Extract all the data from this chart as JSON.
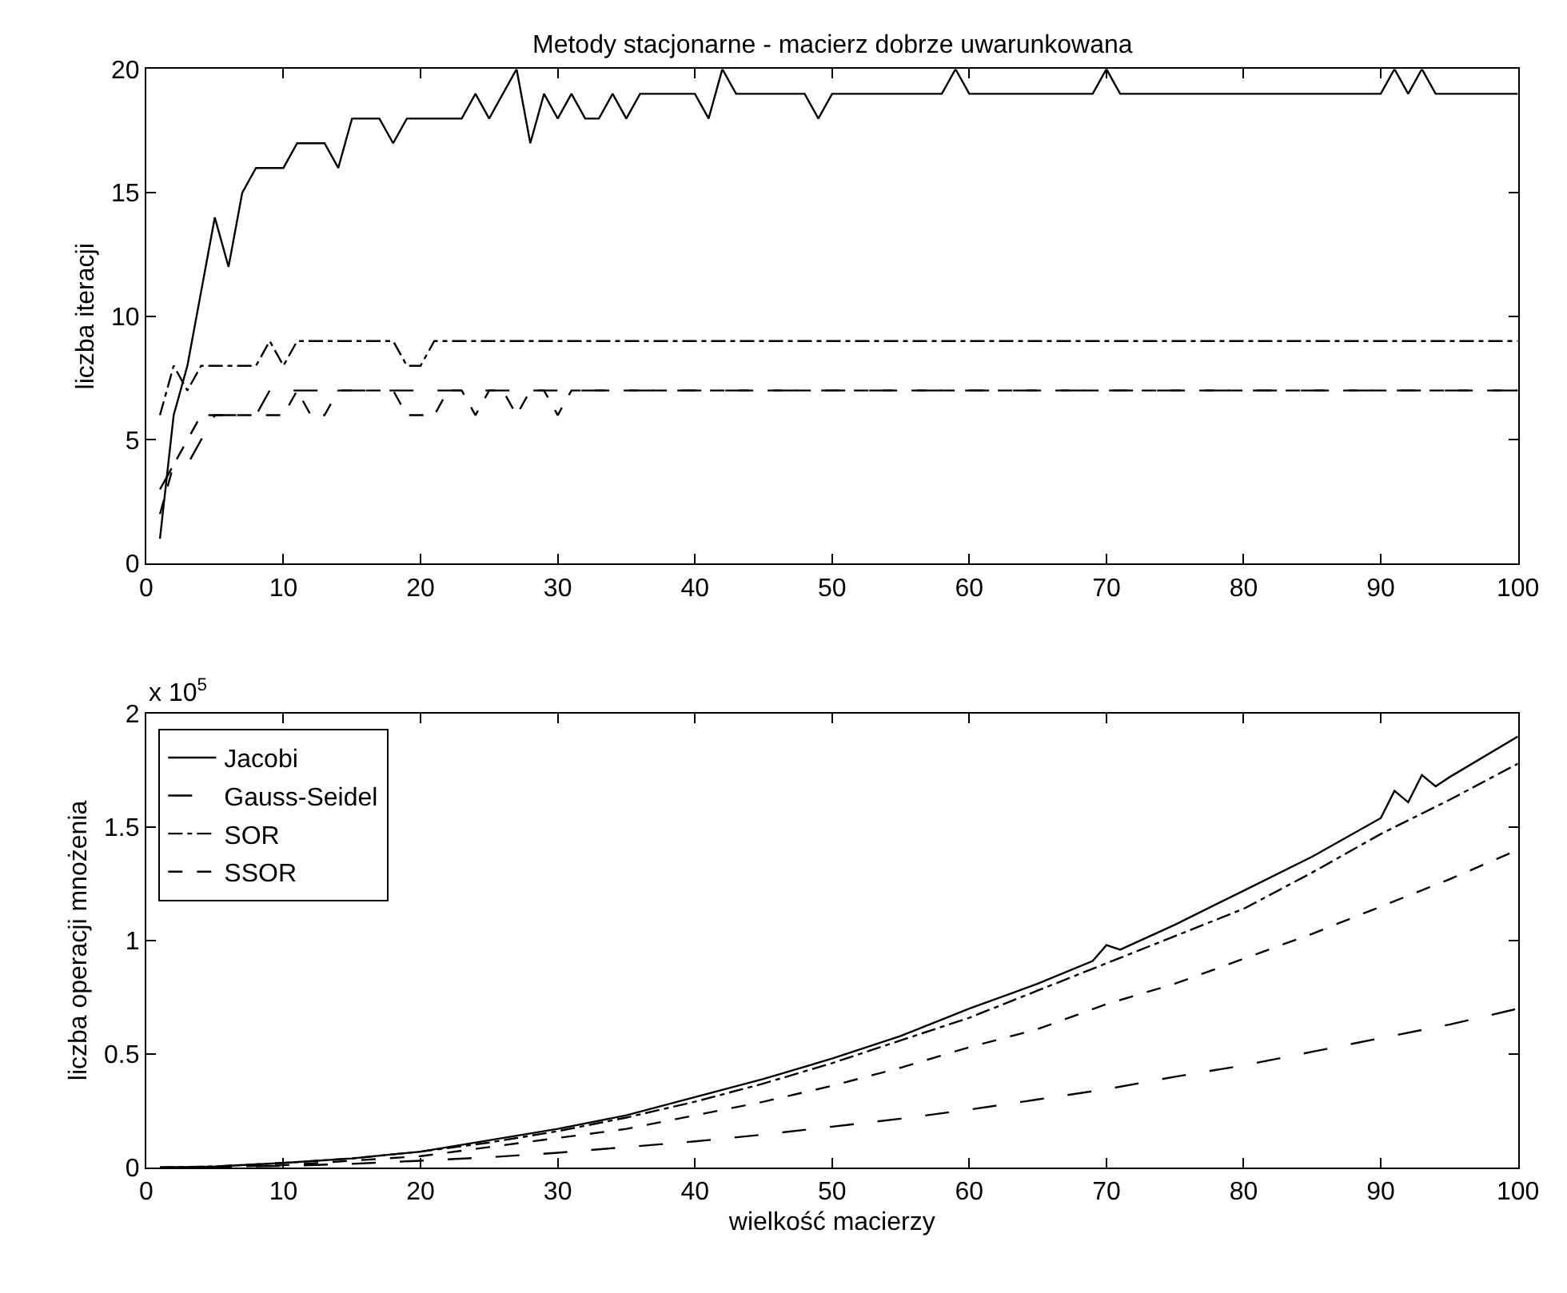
{
  "chart_data": [
    {
      "type": "line",
      "title": "Metody stacjonarne - macierz dobrze uwarunkowana",
      "ylabel": "liczba iteracji",
      "xlim": [
        0,
        100
      ],
      "xticks": [
        0,
        10,
        20,
        30,
        40,
        50,
        60,
        70,
        80,
        90,
        100
      ],
      "ylim": [
        0,
        20
      ],
      "yticks": [
        0,
        5,
        10,
        15,
        20
      ],
      "legend": false,
      "series": [
        {
          "color": "#000000",
          "line_style": "solid",
          "x": [
            1,
            2,
            3,
            5,
            6,
            7,
            8,
            10,
            11,
            13,
            14,
            15,
            17,
            18,
            19,
            23,
            24,
            25,
            27,
            28,
            29,
            30,
            31,
            32,
            33,
            34,
            35,
            36,
            40,
            41,
            42,
            43,
            48,
            49,
            50,
            58,
            59,
            60,
            69,
            70,
            71,
            90,
            91,
            92,
            93,
            94,
            100
          ],
          "values": [
            1,
            6,
            8,
            14,
            12,
            15,
            16,
            16,
            17,
            17,
            16,
            18,
            18,
            17,
            18,
            18,
            19,
            18,
            20,
            17,
            19,
            18,
            19,
            18,
            18,
            19,
            18,
            19,
            19,
            18,
            20,
            19,
            19,
            18,
            19,
            19,
            20,
            19,
            19,
            20,
            19,
            19,
            20,
            19,
            20,
            19,
            19
          ]
        },
        {
          "color": "#000000",
          "line_style": "longdash",
          "x": [
            1,
            2,
            3,
            4,
            5,
            8,
            9,
            100
          ],
          "values": [
            3,
            4,
            4,
            5,
            6,
            6,
            7,
            7
          ]
        },
        {
          "color": "#000000",
          "line_style": "dashdot",
          "x": [
            1,
            2,
            3,
            4,
            8,
            9,
            10,
            11,
            18,
            19,
            20,
            21,
            100
          ],
          "values": [
            6,
            8,
            7,
            8,
            8,
            9,
            8,
            9,
            9,
            8,
            8,
            9,
            9
          ]
        },
        {
          "color": "#000000",
          "line_style": "dashed",
          "x": [
            1,
            2,
            3,
            4,
            10,
            11,
            12,
            13,
            14,
            18,
            19,
            21,
            22,
            23,
            24,
            25,
            26,
            27,
            28,
            29,
            30,
            31,
            100
          ],
          "values": [
            2,
            4,
            5,
            6,
            6,
            7,
            6,
            6,
            7,
            7,
            6,
            6,
            7,
            7,
            6,
            7,
            7,
            6,
            7,
            7,
            6,
            7,
            7
          ]
        }
      ]
    },
    {
      "type": "line",
      "xlabel": "wielkość macierzy",
      "ylabel": "liczba operacji mnożenia",
      "annotations": [
        "x 10$^{5}$"
      ],
      "xlim": [
        0,
        100
      ],
      "xticks": [
        0,
        10,
        20,
        30,
        40,
        50,
        60,
        70,
        80,
        90,
        100
      ],
      "ylim": [
        0,
        2
      ],
      "yticks": [
        0,
        0.5,
        1,
        1.5,
        2
      ],
      "legend": "top left",
      "series": [
        {
          "name": "Jacobi",
          "color": "#000000",
          "line_style": "solid",
          "x": [
            1,
            5,
            10,
            15,
            20,
            25,
            30,
            35,
            40,
            45,
            50,
            55,
            60,
            65,
            69,
            70,
            71,
            75,
            80,
            85,
            90,
            91,
            92,
            93,
            94,
            95,
            100
          ],
          "values": [
            0,
            0.004,
            0.02,
            0.04,
            0.07,
            0.12,
            0.17,
            0.23,
            0.31,
            0.39,
            0.48,
            0.58,
            0.7,
            0.81,
            0.91,
            0.98,
            0.96,
            1.07,
            1.22,
            1.37,
            1.54,
            1.66,
            1.61,
            1.73,
            1.68,
            1.72,
            1.9
          ]
        },
        {
          "name": "Gauss-Seidel",
          "color": "#000000",
          "line_style": "longdash",
          "x": [
            1,
            5,
            10,
            15,
            20,
            25,
            30,
            35,
            40,
            45,
            50,
            55,
            60,
            65,
            70,
            75,
            80,
            85,
            90,
            95,
            100
          ],
          "values": [
            0,
            0.002,
            0.007,
            0.016,
            0.03,
            0.045,
            0.065,
            0.09,
            0.115,
            0.145,
            0.18,
            0.215,
            0.255,
            0.3,
            0.345,
            0.4,
            0.45,
            0.51,
            0.57,
            0.63,
            0.7
          ]
        },
        {
          "name": "SOR",
          "color": "#000000",
          "line_style": "dashdot",
          "x": [
            1,
            5,
            10,
            15,
            20,
            25,
            30,
            35,
            40,
            45,
            50,
            55,
            60,
            65,
            70,
            75,
            80,
            85,
            90,
            95,
            100
          ],
          "values": [
            0,
            0.005,
            0.02,
            0.04,
            0.07,
            0.11,
            0.16,
            0.22,
            0.29,
            0.37,
            0.46,
            0.56,
            0.66,
            0.78,
            0.9,
            1.02,
            1.14,
            1.3,
            1.47,
            1.62,
            1.78
          ]
        },
        {
          "name": "SSOR",
          "color": "#000000",
          "line_style": "dashed",
          "x": [
            1,
            5,
            10,
            15,
            20,
            25,
            30,
            35,
            40,
            45,
            50,
            55,
            60,
            65,
            70,
            75,
            80,
            85,
            90,
            95,
            100
          ],
          "values": [
            0,
            0.003,
            0.01,
            0.03,
            0.05,
            0.09,
            0.13,
            0.17,
            0.23,
            0.29,
            0.36,
            0.44,
            0.53,
            0.61,
            0.72,
            0.81,
            0.92,
            1.03,
            1.15,
            1.27,
            1.4
          ]
        }
      ]
    }
  ]
}
